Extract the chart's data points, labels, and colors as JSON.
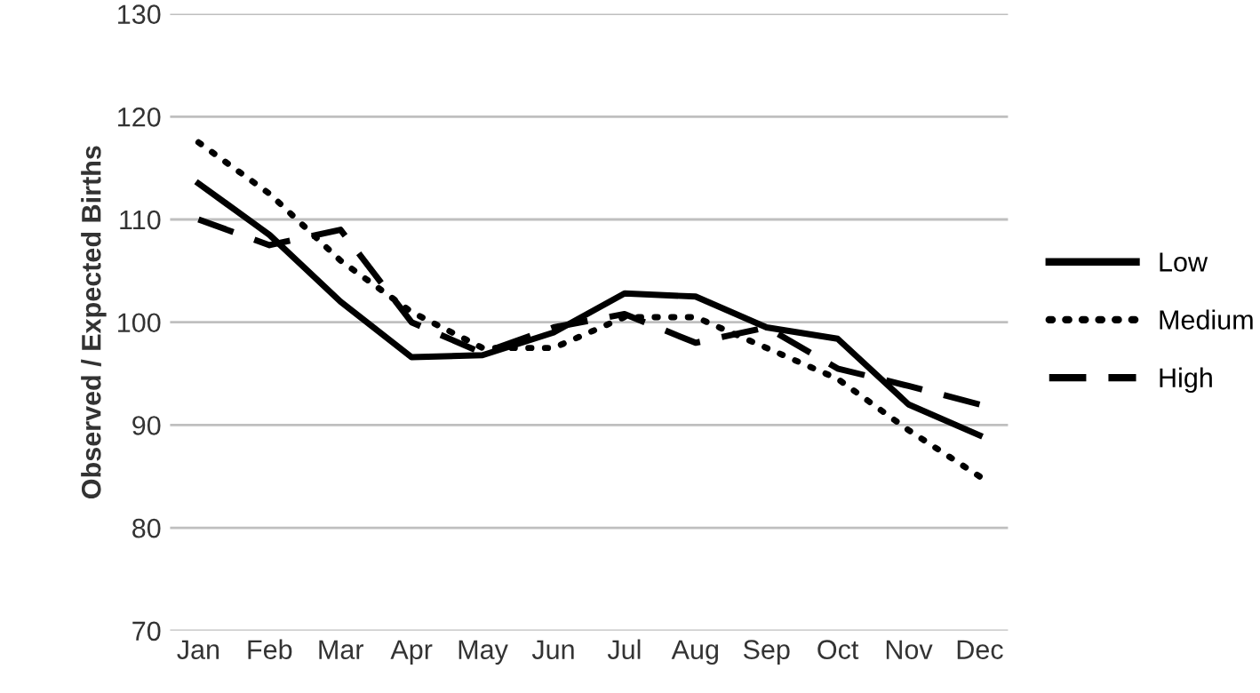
{
  "chart_data": {
    "type": "line",
    "ylabel": "Observed / Expected Births",
    "categories": [
      "Jan",
      "Feb",
      "Mar",
      "Apr",
      "May",
      "Jun",
      "Jul",
      "Aug",
      "Sep",
      "Oct",
      "Nov",
      "Dec"
    ],
    "series": [
      {
        "name": "Low",
        "color": "#000000",
        "line_style": "solid",
        "values": [
          113.5,
          108.5,
          102,
          96.6,
          96.8,
          99,
          102.8,
          102.5,
          99.5,
          98.4,
          92,
          89
        ]
      },
      {
        "name": "Medium",
        "color": "#000000",
        "line_style": "dotted",
        "values": [
          117.5,
          112.5,
          106,
          101,
          97.5,
          97.5,
          100.5,
          100.5,
          97.5,
          94.5,
          89.5,
          85
        ]
      },
      {
        "name": "High",
        "color": "#000000",
        "line_style": "dashed",
        "values": [
          110,
          107.5,
          109,
          100,
          97,
          99.5,
          100.8,
          98,
          99.5,
          95.5,
          93.8,
          92
        ]
      }
    ],
    "ylim": [
      70,
      130
    ],
    "yticks": [
      70,
      80,
      90,
      100,
      110,
      120,
      130
    ],
    "grid": "y",
    "legend": "right",
    "marker": "none"
  }
}
